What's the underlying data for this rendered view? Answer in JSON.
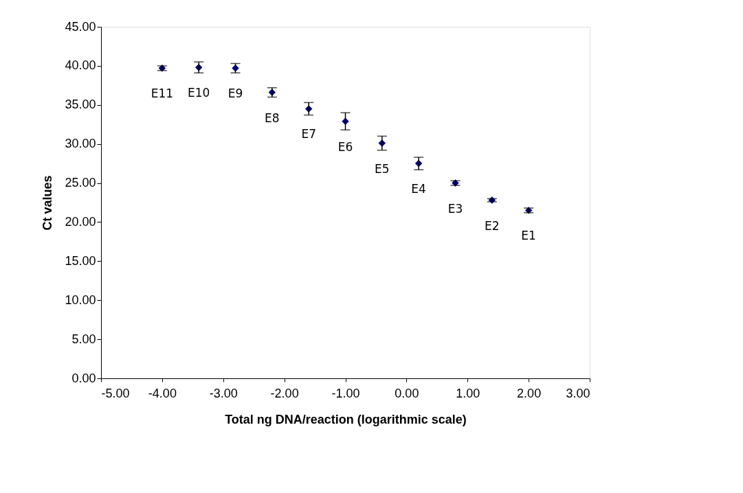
{
  "chart_data": {
    "type": "scatter",
    "xlabel": "Total ng DNA/reaction (logarithmic scale)",
    "ylabel": "Ct values",
    "x": [
      -4.0,
      -3.4,
      -2.8,
      -2.2,
      -1.6,
      -1.0,
      -0.4,
      0.2,
      0.8,
      1.4,
      2.0
    ],
    "series": [
      {
        "color": "#000080",
        "values": [
          39.7,
          39.8,
          39.7,
          36.6,
          34.5,
          32.9,
          30.1,
          27.5,
          25.0,
          22.8,
          21.5
        ],
        "errors": [
          0.3,
          0.7,
          0.6,
          0.6,
          0.8,
          1.1,
          0.9,
          0.8,
          0.3,
          0.2,
          0.3
        ]
      }
    ],
    "annotations": [
      {
        "text": "E11",
        "x": -4.0,
        "y": 39.7
      },
      {
        "text": "E10",
        "x": -3.4,
        "y": 39.8
      },
      {
        "text": "E9",
        "x": -2.8,
        "y": 39.7
      },
      {
        "text": "E8",
        "x": -2.2,
        "y": 36.6
      },
      {
        "text": "E7",
        "x": -1.6,
        "y": 34.5
      },
      {
        "text": "E6",
        "x": -1.0,
        "y": 32.9
      },
      {
        "text": "E5",
        "x": -0.4,
        "y": 30.1
      },
      {
        "text": "E4",
        "x": 0.2,
        "y": 27.5
      },
      {
        "text": "E3",
        "x": 0.8,
        "y": 25.0
      },
      {
        "text": "E2",
        "x": 1.4,
        "y": 22.8
      },
      {
        "text": "E1",
        "x": 2.0,
        "y": 21.5
      }
    ],
    "xlim": [
      -5,
      3
    ],
    "ylim": [
      0,
      45
    ],
    "xticks": [
      {
        "value": -5,
        "label": "-5.00"
      },
      {
        "value": -4,
        "label": "-4.00"
      },
      {
        "value": -3,
        "label": "-3.00"
      },
      {
        "value": -2,
        "label": "-2.00"
      },
      {
        "value": -1,
        "label": "-1.00"
      },
      {
        "value": 0,
        "label": "0.00"
      },
      {
        "value": 1,
        "label": "1.00"
      },
      {
        "value": 2,
        "label": "2.00"
      },
      {
        "value": 3,
        "label": "3.00"
      }
    ],
    "yticks": [
      {
        "value": 0,
        "label": "0.00"
      },
      {
        "value": 5,
        "label": "5.00"
      },
      {
        "value": 10,
        "label": "10.00"
      },
      {
        "value": 15,
        "label": "15.00"
      },
      {
        "value": 20,
        "label": "20.00"
      },
      {
        "value": 25,
        "label": "25.00"
      },
      {
        "value": 30,
        "label": "30.00"
      },
      {
        "value": 35,
        "label": "35.00"
      },
      {
        "value": 40,
        "label": "40.00"
      },
      {
        "value": 45,
        "label": "45.00"
      }
    ],
    "grid": false,
    "marker": "diamond"
  }
}
